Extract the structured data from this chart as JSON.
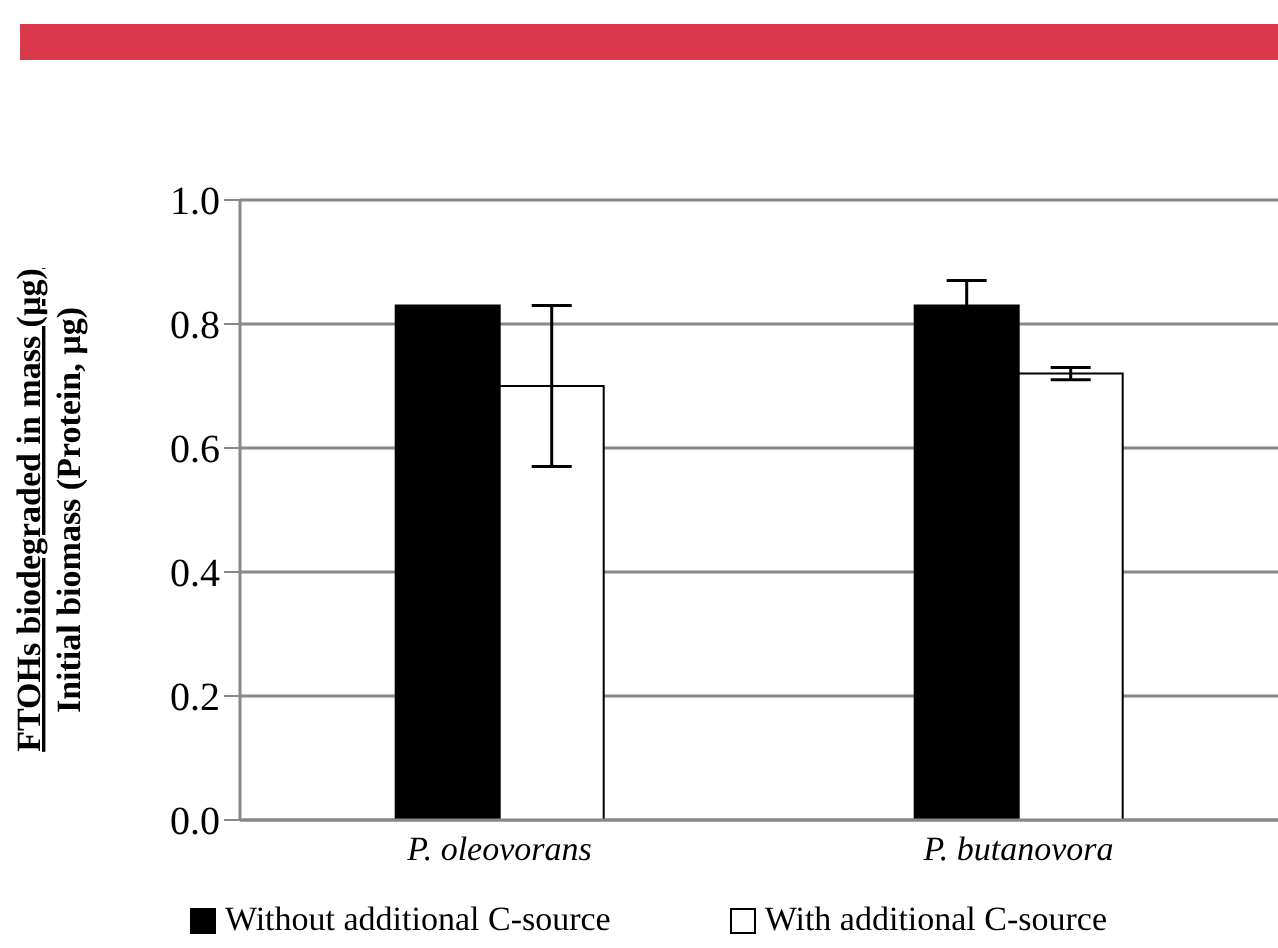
{
  "chart_data": {
    "type": "bar",
    "ylabel": "FTOHs biodegraded in mass (µg)\nInitial biomass (Protein, µg)",
    "categories": [
      "P. oleovorans",
      "P. butanovora"
    ],
    "series": [
      {
        "name": "Without additional C-source",
        "color": "#000000",
        "values": [
          0.83,
          0.83
        ],
        "errors": [
          null,
          0.04
        ]
      },
      {
        "name": "With additional C-source",
        "color": "#ffffff",
        "values": [
          0.7,
          0.72
        ],
        "errors": [
          0.13,
          0.01
        ]
      }
    ],
    "ylim": [
      0,
      1
    ],
    "yticks": [
      {
        "value": 0,
        "label": "0.0"
      },
      {
        "value": 0.2,
        "label": "0.2"
      },
      {
        "value": 0.4,
        "label": "0.4"
      },
      {
        "value": 0.6,
        "label": "0.6"
      },
      {
        "value": 0.8,
        "label": "0.8"
      },
      {
        "value": 1,
        "label": "1.0"
      }
    ],
    "grid": "y",
    "legend": "bottom"
  }
}
